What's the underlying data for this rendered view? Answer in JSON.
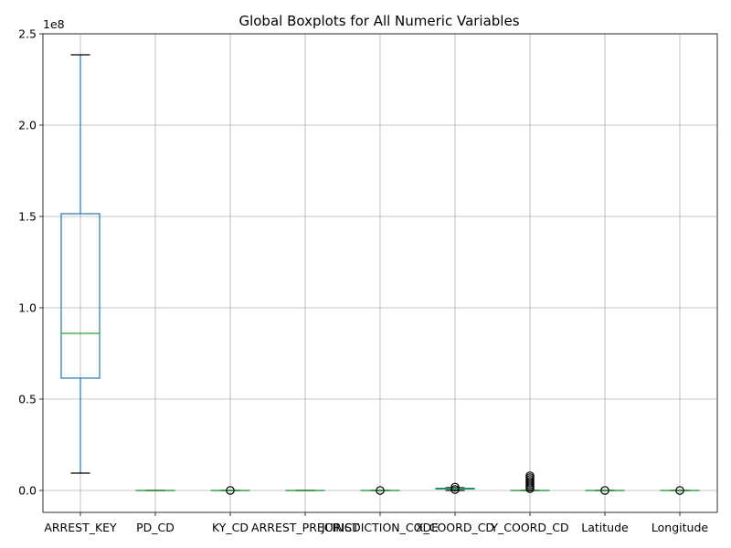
{
  "chart_data": {
    "type": "boxplot",
    "title": "Global Boxplots for All Numeric Variables",
    "xlabel": "",
    "ylabel": "",
    "y_offset_label": "1e8",
    "y_scale": 100000000,
    "ylim": [
      -0.12,
      2.5
    ],
    "yticks": [
      0.0,
      0.5,
      1.0,
      1.5,
      2.0,
      2.5
    ],
    "ytick_labels": [
      "0.0",
      "0.5",
      "1.0",
      "1.5",
      "2.0",
      "2.5"
    ],
    "grid": true,
    "colors": {
      "box": "#1f77b4",
      "median": "#2ca02c",
      "grid": "#b0b0b0",
      "flier": "#000000"
    },
    "categories": [
      "ARREST_KEY",
      "PD_CD",
      "KY_CD",
      "ARREST_PRECINCT",
      "JURISDICTION_CODE",
      "X_COORD_CD",
      "Y_COORD_CD",
      "Latitude",
      "Longitude"
    ],
    "boxes": [
      {
        "name": "ARREST_KEY",
        "whislo": 0.095,
        "q1": 0.615,
        "med": 0.86,
        "q3": 1.515,
        "whishi": 2.385,
        "fliers": []
      },
      {
        "name": "PD_CD",
        "whislo": 0.0,
        "q1": 0.0,
        "med": 0.0,
        "q3": 0.0,
        "whishi": 0.0,
        "fliers": []
      },
      {
        "name": "KY_CD",
        "whislo": 0.0,
        "q1": 0.0,
        "med": 0.0,
        "q3": 0.0,
        "whishi": 0.0,
        "fliers": [
          0.0
        ]
      },
      {
        "name": "ARREST_PRECINCT",
        "whislo": 0.0,
        "q1": 0.0,
        "med": 0.0,
        "q3": 0.0,
        "whishi": 0.0,
        "fliers": []
      },
      {
        "name": "JURISDICTION_CODE",
        "whislo": 0.0,
        "q1": 0.0,
        "med": 0.0,
        "q3": 0.0,
        "whishi": 0.0,
        "fliers": [
          0.0
        ]
      },
      {
        "name": "X_COORD_CD",
        "whislo": 0.0,
        "q1": 0.008,
        "med": 0.01,
        "q3": 0.012,
        "whishi": 0.015,
        "fliers": [
          0.005,
          0.018
        ]
      },
      {
        "name": "Y_COORD_CD",
        "whislo": 0.0,
        "q1": 0.0,
        "med": 0.0,
        "q3": 0.0,
        "whishi": 0.0,
        "fliers": [
          0.01,
          0.02,
          0.03,
          0.04,
          0.05,
          0.06,
          0.07,
          0.08
        ]
      },
      {
        "name": "Latitude",
        "whislo": 0.0,
        "q1": 0.0,
        "med": 0.0,
        "q3": 0.0,
        "whishi": 0.0,
        "fliers": [
          0.0
        ]
      },
      {
        "name": "Longitude",
        "whislo": 0.0,
        "q1": 0.0,
        "med": 0.0,
        "q3": 0.0,
        "whishi": 0.0,
        "fliers": [
          0.0
        ]
      }
    ]
  }
}
